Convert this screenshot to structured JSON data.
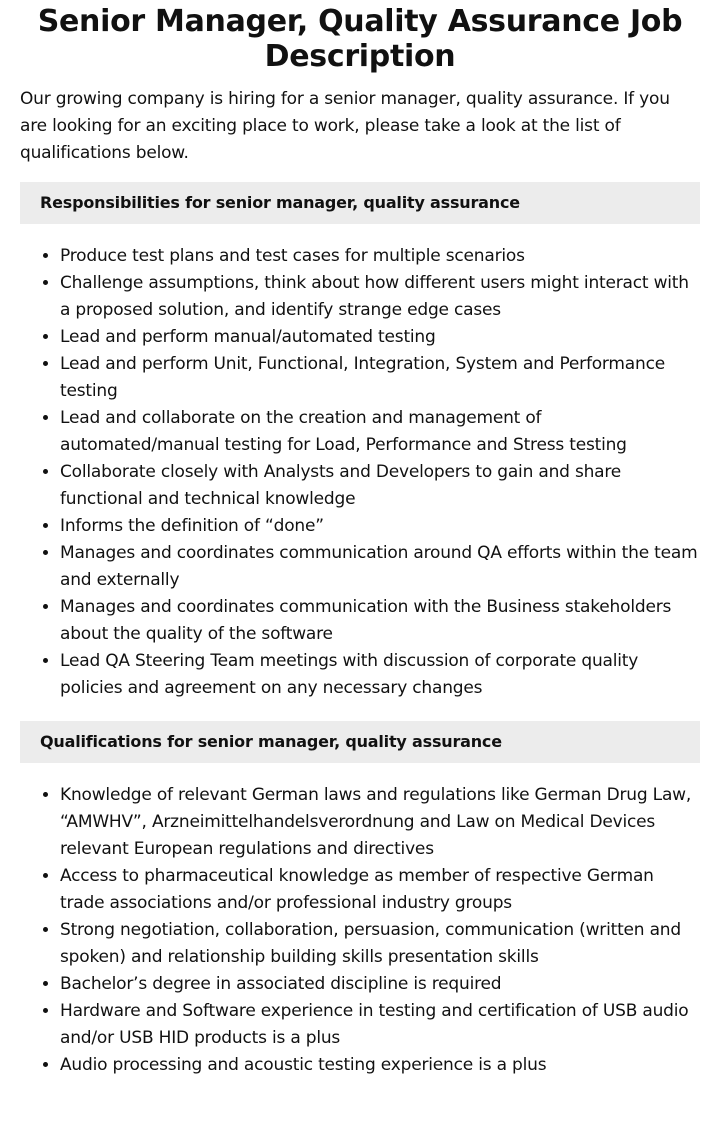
{
  "title": "Senior Manager, Quality Assurance Job Description",
  "intro": "Our growing company is hiring for a senior manager, quality assurance. If you are looking for an exciting place to work, please take a look at the list of qualifications below.",
  "sections": [
    {
      "heading": "Responsibilities for senior manager, quality assurance",
      "items": [
        "Produce test plans and test cases for multiple scenarios",
        "Challenge assumptions, think about how different users might interact with a proposed solution, and identify strange edge cases",
        "Lead and perform manual/automated testing",
        "Lead and perform Unit, Functional, Integration, System and Performance testing",
        "Lead and collaborate on the creation and management of automated/manual testing for Load, Performance and Stress testing",
        "Collaborate closely with Analysts and Developers to gain and share functional and technical knowledge",
        "Informs the definition of “done”",
        "Manages and coordinates communication around QA efforts within the team and externally",
        "Manages and coordinates communication with the Business stakeholders about the quality of the software",
        "Lead QA Steering Team meetings with discussion of corporate quality policies and agreement on any necessary changes"
      ]
    },
    {
      "heading": "Qualifications for senior manager, quality assurance",
      "items": [
        "Knowledge of relevant German laws and regulations like German Drug Law, “AMWHV”, Arzneimittelhandelsverordnung and Law on Medical Devices relevant European regulations and directives",
        "Access to pharmaceutical knowledge as member of respective German trade associations and/or professional industry groups",
        "Strong negotiation, collaboration, persuasion, communication (written and spoken) and relationship building skills presentation skills",
        "Bachelor’s degree in associated discipline is required",
        "Hardware and Software experience in testing and certification of USB audio and/or USB HID products is a plus",
        "Audio processing and acoustic testing experience is a plus"
      ]
    }
  ]
}
